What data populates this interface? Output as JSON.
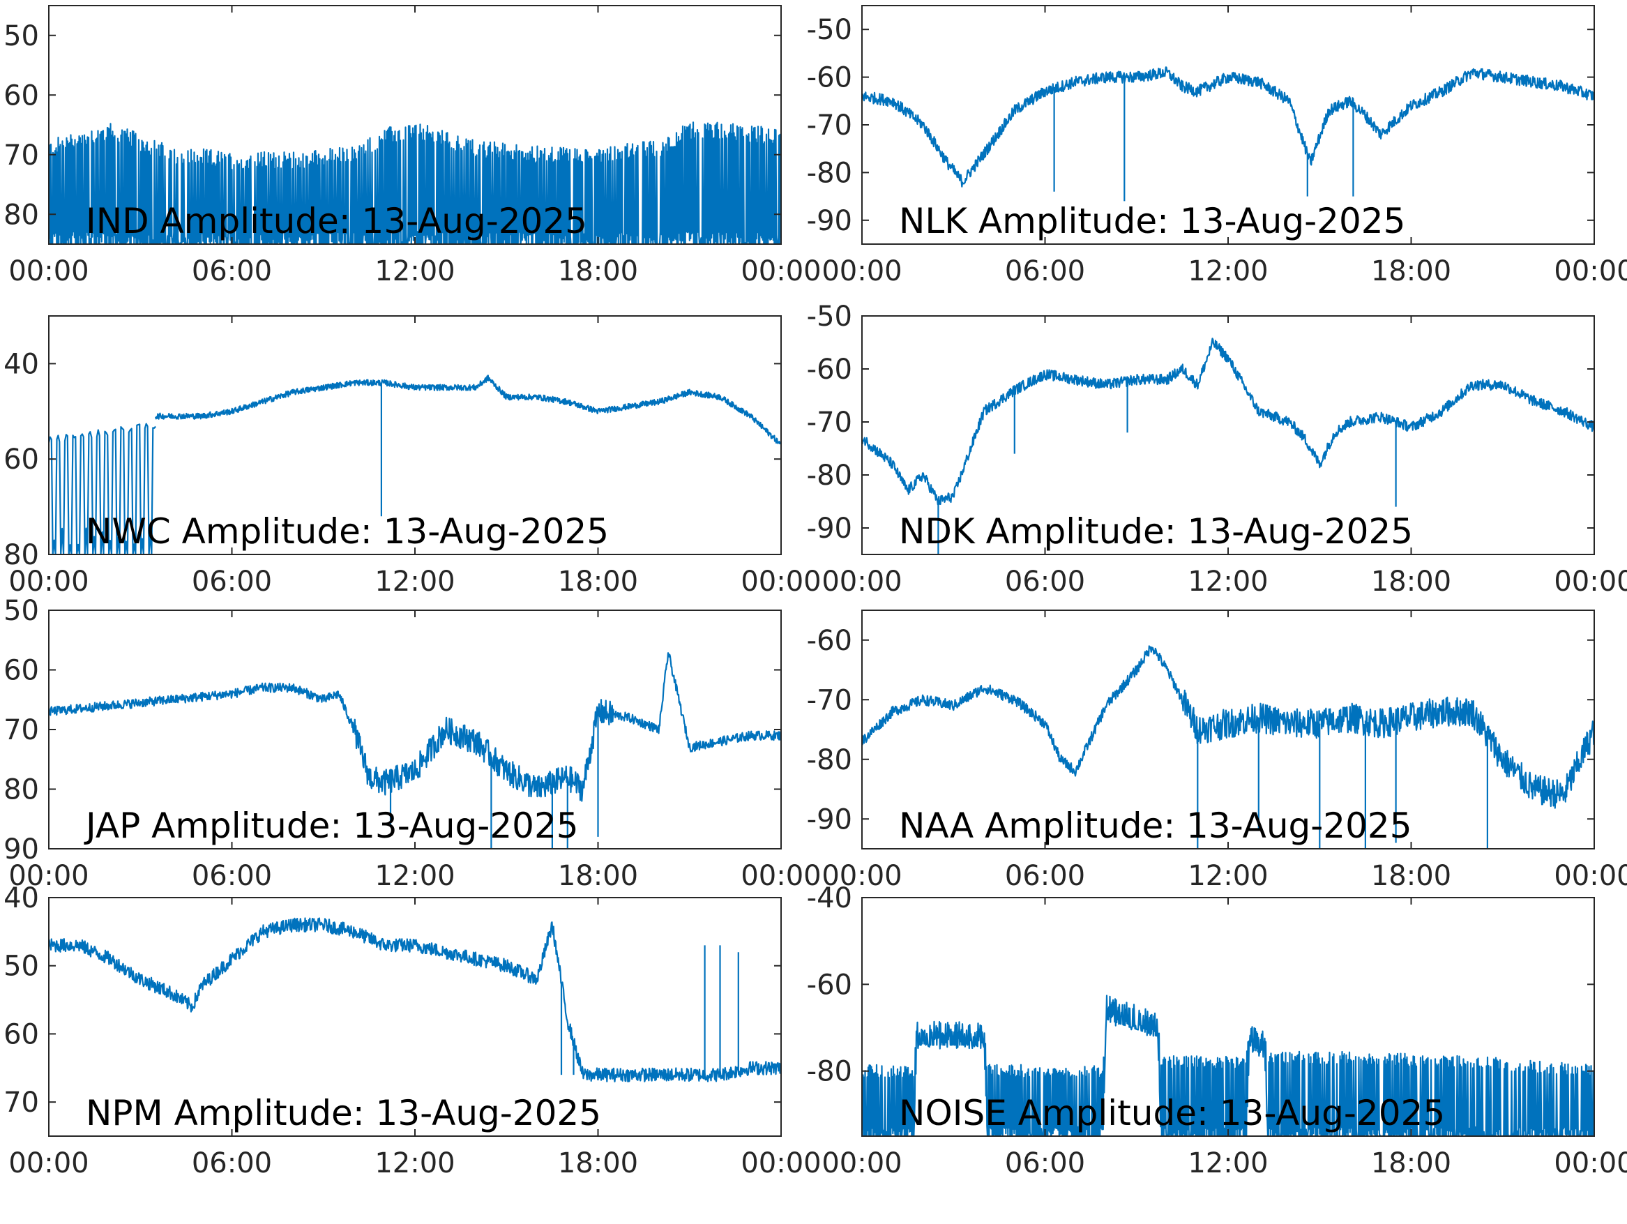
{
  "figure": {
    "line_color": "#0072BD"
  },
  "chart_data": [
    {
      "type": "line",
      "title": "IND Amplitude: 13-Aug-2025",
      "x_ticks": [
        "00:00",
        "06:00",
        "12:00",
        "18:00",
        "00:00"
      ],
      "ylim": [
        -85,
        -45
      ],
      "y_ticks": [
        -50,
        -60,
        -70,
        -80
      ],
      "y_tick_labels": [
        "50",
        "60",
        "70",
        "80"
      ],
      "grid": false,
      "series": [
        {
          "x_hours": [
            0,
            2,
            4,
            6,
            8,
            10,
            11,
            12,
            14,
            16,
            18,
            20,
            21,
            22,
            24
          ],
          "values": [
            -74,
            -73,
            -74,
            -75,
            -75,
            -74,
            -73,
            -72,
            -74,
            -74,
            -74,
            -74,
            -73,
            -72,
            -73
          ],
          "band_top": [
            -69,
            -66,
            -70,
            -71,
            -71,
            -70,
            -67,
            -66,
            -69,
            -70,
            -70,
            -69,
            -66,
            -66,
            -67
          ],
          "band_bottom": [
            -85,
            -85,
            -85,
            -85,
            -85,
            -85,
            -85,
            -85,
            -85,
            -85,
            -85,
            -85,
            -85,
            -85,
            -85
          ],
          "noise": 3
        }
      ]
    },
    {
      "type": "line",
      "title": "NLK Amplitude: 13-Aug-2025",
      "x_ticks": [
        "00:00",
        "06:00",
        "12:00",
        "18:00",
        "00:00"
      ],
      "ylim": [
        -95,
        -45
      ],
      "y_ticks": [
        -50,
        -60,
        -70,
        -80,
        -90
      ],
      "y_tick_labels": [
        "-50",
        "-60",
        "-70",
        "-80",
        "-90"
      ],
      "grid": false,
      "series": [
        {
          "x_hours": [
            0,
            1,
            2,
            2.8,
            3.3,
            4,
            5,
            6,
            7,
            8,
            9,
            10,
            10.5,
            11,
            12,
            13,
            14,
            14.7,
            15.3,
            16,
            16.5,
            17,
            18,
            19,
            20,
            21,
            22,
            23,
            24
          ],
          "values": [
            -64,
            -65,
            -70,
            -78,
            -82,
            -76,
            -67,
            -63,
            -61,
            -60,
            -60,
            -59,
            -62,
            -63,
            -60,
            -61,
            -65,
            -78,
            -67,
            -65,
            -68,
            -72,
            -66,
            -63,
            -59,
            -60,
            -61,
            -62,
            -64
          ],
          "noise": 1.2,
          "spikes": [
            [
              6.3,
              -84
            ],
            [
              8.6,
              -86
            ],
            [
              14.6,
              -85
            ],
            [
              16.1,
              -85
            ]
          ]
        }
      ]
    },
    {
      "type": "line",
      "title": "NWC Amplitude: 13-Aug-2025",
      "x_ticks": [
        "00:00",
        "06:00",
        "12:00",
        "18:00",
        "00:00"
      ],
      "ylim": [
        -80,
        -30
      ],
      "y_ticks": [
        -40,
        -60,
        -80
      ],
      "y_tick_labels": [
        "40",
        "60",
        "80"
      ],
      "grid": false,
      "series": [
        {
          "x_hours": [
            3.5,
            4,
            5,
            6,
            7,
            8,
            9,
            10,
            11,
            12,
            13,
            14,
            14.4,
            15,
            16,
            17,
            18,
            19,
            20,
            21,
            22,
            23,
            24
          ],
          "values": [
            -51,
            -51,
            -51,
            -50,
            -48,
            -46,
            -45,
            -44,
            -44,
            -45,
            -45,
            -45,
            -43,
            -47,
            -47,
            -48,
            -50,
            -49,
            -48,
            -46,
            -47,
            -51,
            -57
          ],
          "noise": 0.6,
          "spikes": [
            [
              10.9,
              -72
            ]
          ],
          "pre_data": {
            "from": 0,
            "to": 3.5,
            "high": [
              -56,
              -53
            ],
            "low": -80,
            "mid": -76
          }
        }
      ]
    },
    {
      "type": "line",
      "title": "NDK Amplitude: 13-Aug-2025",
      "x_ticks": [
        "00:00",
        "06:00",
        "12:00",
        "18:00",
        "00:00"
      ],
      "ylim": [
        -95,
        -50
      ],
      "y_ticks": [
        -50,
        -60,
        -70,
        -80,
        -90
      ],
      "y_tick_labels": [
        "-50",
        "-60",
        "-70",
        "-80",
        "-90"
      ],
      "grid": false,
      "series": [
        {
          "x_hours": [
            0,
            1,
            1.5,
            2,
            2.5,
            3,
            4,
            5,
            6,
            7,
            8,
            9,
            10,
            10.5,
            11,
            11.5,
            12,
            13,
            14,
            14.5,
            15,
            15.5,
            16,
            17,
            18,
            19,
            20,
            21,
            22,
            23,
            24
          ],
          "values": [
            -73,
            -78,
            -83,
            -80,
            -85,
            -84,
            -68,
            -64,
            -61,
            -62,
            -63,
            -62,
            -62,
            -60,
            -63,
            -55,
            -58,
            -68,
            -70,
            -73,
            -78,
            -72,
            -70,
            -69,
            -71,
            -68,
            -63,
            -63,
            -66,
            -68,
            -71
          ],
          "noise": 1.0,
          "spikes": [
            [
              2.5,
              -95
            ],
            [
              5.0,
              -76
            ],
            [
              8.7,
              -72
            ],
            [
              17.5,
              -86
            ]
          ]
        }
      ]
    },
    {
      "type": "line",
      "title": "JAP Amplitude: 13-Aug-2025",
      "x_ticks": [
        "00:00",
        "06:00",
        "12:00",
        "18:00",
        "00:00"
      ],
      "ylim": [
        -90,
        -50
      ],
      "y_ticks": [
        -50,
        -60,
        -70,
        -80,
        -90
      ],
      "y_tick_labels": [
        "50",
        "60",
        "70",
        "80",
        "90"
      ],
      "grid": false,
      "series": [
        {
          "x_hours": [
            0,
            2,
            4,
            6,
            7,
            8,
            9,
            9.5,
            10,
            10.5,
            11,
            12,
            13,
            14,
            15,
            16,
            17,
            17.5,
            18,
            19,
            20,
            20.3,
            21,
            22,
            23,
            24
          ],
          "values": [
            -67,
            -66,
            -65,
            -64,
            -63,
            -63,
            -65,
            -64,
            -70,
            -78,
            -79,
            -77,
            -70,
            -72,
            -77,
            -80,
            -78,
            -80,
            -67,
            -68,
            -70,
            -57,
            -73,
            -72,
            -71,
            -71
          ],
          "noise": 2.2,
          "noise_window": [
            10,
            18.5
          ],
          "spikes": [
            [
              11.2,
              -86
            ],
            [
              14.5,
              -90
            ],
            [
              16.5,
              -90
            ],
            [
              17.0,
              -90
            ],
            [
              18.0,
              -88
            ]
          ]
        }
      ]
    },
    {
      "type": "line",
      "title": "NAA Amplitude: 13-Aug-2025",
      "x_ticks": [
        "00:00",
        "06:00",
        "12:00",
        "18:00",
        "00:00"
      ],
      "ylim": [
        -95,
        -55
      ],
      "y_ticks": [
        -60,
        -70,
        -80,
        -90
      ],
      "y_tick_labels": [
        "-60",
        "-70",
        "-80",
        "-90"
      ],
      "grid": false,
      "series": [
        {
          "x_hours": [
            0,
            1,
            2,
            3,
            4,
            5,
            6,
            6.5,
            7,
            8,
            9,
            9.5,
            10,
            10.5,
            11,
            12,
            13,
            14,
            15,
            16,
            17,
            18,
            19,
            20,
            21,
            22,
            23,
            24
          ],
          "values": [
            -77,
            -72,
            -70,
            -71,
            -68,
            -70,
            -74,
            -80,
            -82,
            -71,
            -65,
            -61,
            -65,
            -70,
            -75,
            -74,
            -73,
            -74,
            -74,
            -73,
            -74,
            -73,
            -72,
            -72,
            -80,
            -85,
            -86,
            -75
          ],
          "noise": 2.5,
          "noise_window": [
            10.5,
            24
          ],
          "spikes": [
            [
              11,
              -95
            ],
            [
              13,
              -92
            ],
            [
              15,
              -95
            ],
            [
              16.5,
              -95
            ],
            [
              17.5,
              -94
            ],
            [
              20.5,
              -95
            ]
          ]
        }
      ]
    },
    {
      "type": "line",
      "title": "NPM Amplitude: 13-Aug-2025",
      "x_ticks": [
        "00:00",
        "06:00",
        "12:00",
        "18:00",
        "00:00"
      ],
      "ylim": [
        -75,
        -40
      ],
      "y_ticks": [
        -40,
        -50,
        -60,
        -70
      ],
      "y_tick_labels": [
        "40",
        "50",
        "60",
        "70"
      ],
      "grid": false,
      "series": [
        {
          "x_hours": [
            0,
            1,
            2,
            3,
            4,
            4.7,
            5,
            6,
            7,
            8,
            9,
            10,
            11,
            12,
            13,
            14,
            15,
            16,
            16.5,
            17,
            17.5,
            18,
            19,
            20,
            21,
            22,
            23,
            24
          ],
          "values": [
            -47,
            -47,
            -49,
            -52,
            -54,
            -56,
            -53,
            -49,
            -45,
            -44,
            -44,
            -45,
            -47,
            -47,
            -48,
            -49,
            -50,
            -52,
            -44,
            -58,
            -66,
            -66,
            -66,
            -66,
            -66,
            -66,
            -65,
            -65
          ],
          "noise": 1.0,
          "spikes": [
            [
              21.5,
              -47
            ],
            [
              22.0,
              -47
            ],
            [
              22.6,
              -48
            ],
            [
              16.8,
              -66
            ],
            [
              17.2,
              -66
            ]
          ]
        }
      ]
    },
    {
      "type": "line",
      "title": "NOISE Amplitude: 13-Aug-2025",
      "x_ticks": [
        "00:00",
        "06:00",
        "12:00",
        "18:00",
        "00:00"
      ],
      "ylim": [
        -95,
        -40
      ],
      "y_ticks": [
        -40,
        -60,
        -80
      ],
      "y_tick_labels": [
        "-40",
        "-60",
        "-80"
      ],
      "grid": false,
      "series": [
        {
          "x_hours": [
            0,
            1.7,
            1.8,
            4.0,
            4.1,
            7.9,
            8.0,
            9.7,
            9.8,
            12.6,
            12.7,
            13.2,
            13.3,
            16,
            20,
            24
          ],
          "values": [
            -87,
            -87,
            -72,
            -72,
            -87,
            -87,
            -66,
            -70,
            -86,
            -86,
            -73,
            -74,
            -86,
            -85,
            -85,
            -87
          ],
          "band_top": [
            -80,
            -80,
            -70,
            -70,
            -80,
            -80,
            -64,
            -68,
            -78,
            -78,
            -71,
            -72,
            -77,
            -77,
            -78,
            -80
          ],
          "band_bottom": [
            -95,
            -95,
            -74,
            -74,
            -95,
            -95,
            -68,
            -72,
            -95,
            -95,
            -75,
            -76,
            -95,
            -95,
            -95,
            -95
          ],
          "noise": 3
        }
      ]
    }
  ]
}
